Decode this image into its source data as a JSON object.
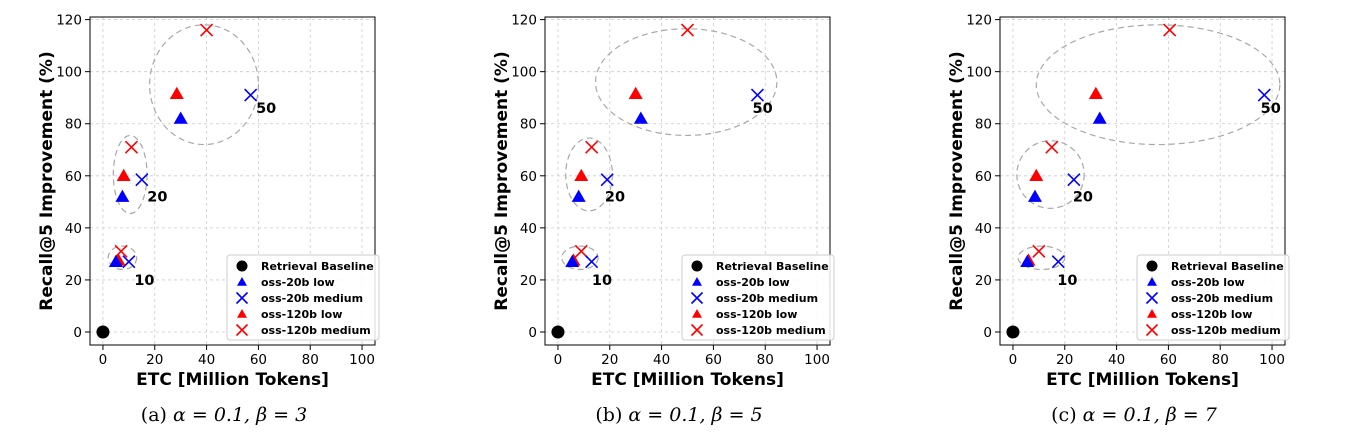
{
  "colors": {
    "baseline": "#000000",
    "oss20b": "#0000ff",
    "oss120b": "#ff0000",
    "grid": "#cccccc",
    "cluster": "#a8a8a8"
  },
  "legend_entries": [
    {
      "label": "Retrieval Baseline",
      "marker": "circle",
      "color": "#000000"
    },
    {
      "label": "oss-20b low",
      "marker": "triangle",
      "color": "#0000ff"
    },
    {
      "label": "oss-20b medium",
      "marker": "x",
      "color": "#0000ff"
    },
    {
      "label": "oss-120b low",
      "marker": "triangle",
      "color": "#ff0000"
    },
    {
      "label": "oss-120b medium",
      "marker": "x",
      "color": "#ff0000"
    }
  ],
  "chart_data": [
    {
      "type": "scatter",
      "caption_prefix": "(a)",
      "caption_math": "α = 0.1, β = 3",
      "xlabel": "ETC [Million Tokens]",
      "ylabel": "Recall@5 Improvement (%)",
      "xlim": [
        -5,
        105
      ],
      "ylim": [
        -5,
        121
      ],
      "xticks": [
        0,
        20,
        40,
        60,
        80,
        100
      ],
      "yticks": [
        0,
        20,
        40,
        60,
        80,
        100,
        120
      ],
      "grid": true,
      "legend": "lower-right",
      "baseline": {
        "x": 0,
        "y": 0
      },
      "groups": [
        {
          "label": "10",
          "label_pos": [
            16,
            20
          ],
          "ellipse": {
            "cx": 7.5,
            "cy": 28.5,
            "rx": 5.5,
            "ry": 4.5
          },
          "points": {
            "oss20b_low": [
              5,
              27
            ],
            "oss20b_medium": [
              10,
              27
            ],
            "oss120b_low": [
              6,
              27.5
            ],
            "oss120b_medium": [
              7,
              31
            ]
          }
        },
        {
          "label": "20",
          "label_pos": [
            21,
            52
          ],
          "ellipse": {
            "cx": 10.5,
            "cy": 60.5,
            "rx": 6.5,
            "ry": 15
          },
          "points": {
            "oss20b_low": [
              7.5,
              52
            ],
            "oss20b_medium": [
              15,
              58.5
            ],
            "oss120b_low": [
              8,
              60
            ],
            "oss120b_medium": [
              11,
              71
            ]
          }
        },
        {
          "label": "50",
          "label_pos": [
            63,
            86
          ],
          "ellipse": {
            "cx": 39,
            "cy": 95,
            "rx": 21,
            "ry": 23
          },
          "points": {
            "oss20b_low": [
              30,
              82
            ],
            "oss20b_medium": [
              57,
              91
            ],
            "oss120b_low": [
              28.5,
              91.5
            ],
            "oss120b_medium": [
              40,
              116
            ]
          }
        }
      ]
    },
    {
      "type": "scatter",
      "caption_prefix": "(b)",
      "caption_math": "α = 0.1, β = 5",
      "xlabel": "ETC [Million Tokens]",
      "ylabel": "Recall@5 Improvement (%)",
      "xlim": [
        -5,
        105
      ],
      "ylim": [
        -5,
        121
      ],
      "xticks": [
        0,
        20,
        40,
        60,
        80,
        100
      ],
      "yticks": [
        0,
        20,
        40,
        60,
        80,
        100,
        120
      ],
      "grid": true,
      "legend": "lower-right",
      "baseline": {
        "x": 0,
        "y": 0
      },
      "groups": [
        {
          "label": "10",
          "label_pos": [
            17,
            20
          ],
          "ellipse": {
            "cx": 8.5,
            "cy": 28.5,
            "rx": 7,
            "ry": 4.5
          },
          "points": {
            "oss20b_low": [
              5.5,
              27
            ],
            "oss20b_medium": [
              13,
              27
            ],
            "oss120b_low": [
              6,
              27.5
            ],
            "oss120b_medium": [
              9,
              31
            ]
          }
        },
        {
          "label": "20",
          "label_pos": [
            22,
            52
          ],
          "ellipse": {
            "cx": 12,
            "cy": 60.5,
            "rx": 9,
            "ry": 14
          }
        },
        {
          "label": "50",
          "label_pos": [
            79,
            86
          ],
          "ellipse": {
            "cx": 49.5,
            "cy": 96,
            "rx": 35,
            "ry": 20.5
          }
        }
      ],
      "series_points": {
        "oss20b_low": [
          [
            5.5,
            27
          ],
          [
            8,
            52
          ],
          [
            32,
            82
          ]
        ],
        "oss20b_medium": [
          [
            13,
            27
          ],
          [
            19,
            58.5
          ],
          [
            77,
            91
          ]
        ],
        "oss120b_low": [
          [
            6,
            27.5
          ],
          [
            9,
            60
          ],
          [
            30,
            91.5
          ]
        ],
        "oss120b_medium": [
          [
            9,
            31
          ],
          [
            13,
            71
          ],
          [
            50,
            116
          ]
        ]
      }
    },
    {
      "type": "scatter",
      "caption_prefix": "(c)",
      "caption_math": "α = 0.1, β = 7",
      "xlabel": "ETC [Million Tokens]",
      "ylabel": "Recall@5 Improvement (%)",
      "xlim": [
        -5,
        105
      ],
      "ylim": [
        -5,
        121
      ],
      "xticks": [
        0,
        20,
        40,
        60,
        80,
        100
      ],
      "yticks": [
        0,
        20,
        40,
        60,
        80,
        100,
        120
      ],
      "grid": true,
      "legend": "lower-right",
      "baseline": {
        "x": 0,
        "y": 0
      },
      "groups": [
        {
          "label": "10",
          "label_pos": [
            21,
            20
          ],
          "ellipse": {
            "cx": 11,
            "cy": 28.5,
            "rx": 9,
            "ry": 4.5
          }
        },
        {
          "label": "20",
          "label_pos": [
            27,
            52
          ],
          "ellipse": {
            "cx": 14.5,
            "cy": 60.5,
            "rx": 13,
            "ry": 13
          }
        },
        {
          "label": "50",
          "label_pos": [
            99.5,
            86
          ],
          "ellipse": {
            "cx": 56,
            "cy": 95,
            "rx": 47,
            "ry": 23
          }
        }
      ],
      "series_points": {
        "oss20b_low": [
          [
            5.5,
            27
          ],
          [
            8.5,
            52
          ],
          [
            33.5,
            82
          ]
        ],
        "oss20b_medium": [
          [
            17.5,
            27
          ],
          [
            23.5,
            58.5
          ],
          [
            97,
            91
          ]
        ],
        "oss120b_low": [
          [
            6,
            27.5
          ],
          [
            9,
            60
          ],
          [
            32,
            91.5
          ]
        ],
        "oss120b_medium": [
          [
            10,
            31
          ],
          [
            15,
            71
          ],
          [
            60.5,
            116
          ]
        ]
      }
    }
  ]
}
